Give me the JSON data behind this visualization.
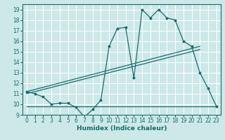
{
  "xlabel": "Humidex (Indice chaleur)",
  "bg_color": "#cce8e8",
  "grid_color": "#ffffff",
  "line_color": "#1a6b6b",
  "xlim": [
    -0.5,
    23.5
  ],
  "ylim": [
    9,
    19.5
  ],
  "yticks": [
    9,
    10,
    11,
    12,
    13,
    14,
    15,
    16,
    17,
    18,
    19
  ],
  "xticks": [
    0,
    1,
    2,
    3,
    4,
    5,
    6,
    7,
    8,
    9,
    10,
    11,
    12,
    13,
    14,
    15,
    16,
    17,
    18,
    19,
    20,
    21,
    22,
    23
  ],
  "main_line_x": [
    0,
    1,
    2,
    3,
    4,
    5,
    6,
    7,
    8,
    9,
    10,
    11,
    12,
    13,
    14,
    15,
    16,
    17,
    18,
    19,
    20,
    21,
    22,
    23
  ],
  "main_line_y": [
    11.2,
    11.0,
    10.7,
    10.0,
    10.1,
    10.1,
    9.7,
    8.8,
    9.5,
    10.4,
    15.5,
    17.2,
    17.3,
    12.5,
    19.0,
    18.2,
    19.0,
    18.2,
    18.0,
    16.0,
    15.5,
    13.0,
    11.5,
    9.8
  ],
  "trend_line1_x": [
    0,
    21
  ],
  "trend_line1_y": [
    11.2,
    15.5
  ],
  "trend_line2_x": [
    0,
    21
  ],
  "trend_line2_y": [
    11.0,
    15.2
  ],
  "horiz_line_x": [
    0,
    23
  ],
  "horiz_line_y": [
    9.8,
    9.8
  ],
  "tick_fontsize": 5.5,
  "xlabel_fontsize": 6.5
}
